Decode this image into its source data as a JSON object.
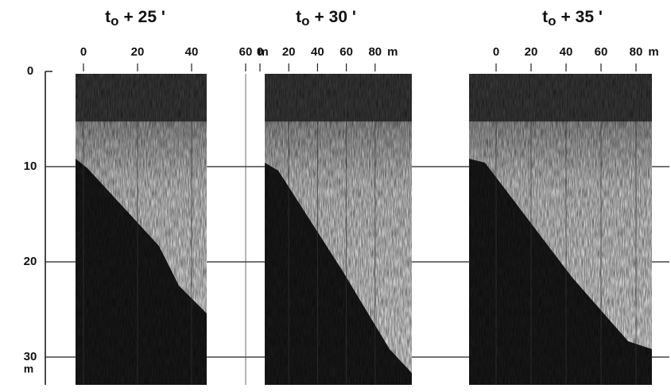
{
  "depth_axis": {
    "ticks": [
      0,
      10,
      20,
      30
    ],
    "unit": "m"
  },
  "panels": [
    {
      "title": {
        "base": "t",
        "subscript": "o",
        "rest": "+ 25 '"
      },
      "range_ticks": [
        0,
        20,
        40,
        60
      ],
      "unit": "m"
    },
    {
      "title": {
        "base": "t",
        "subscript": "o",
        "rest": "+ 30 '"
      },
      "range_ticks": [
        0,
        20,
        40,
        60,
        80
      ],
      "unit": "m"
    },
    {
      "title": {
        "base": "t",
        "subscript": "o",
        "rest": "+ 35 '"
      },
      "range_ticks": [
        0,
        20,
        40,
        60,
        80
      ],
      "unit": "m"
    }
  ]
}
